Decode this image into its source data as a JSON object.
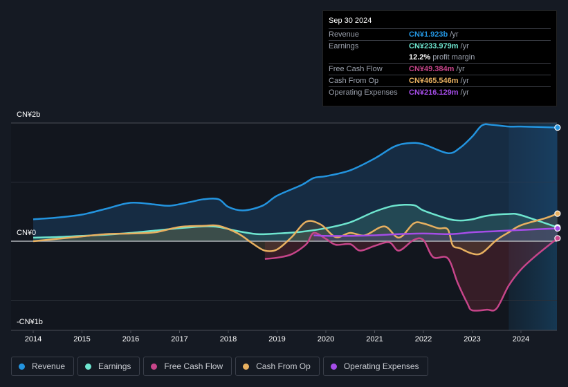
{
  "tooltip": {
    "date": "Sep 30 2024",
    "rows": [
      {
        "label": "Revenue",
        "value": "CN¥1.923b",
        "unit": "/yr",
        "color": "#2394df"
      },
      {
        "label": "Earnings",
        "value": "CN¥233.979m",
        "unit": "/yr",
        "color": "#6ee5cf"
      },
      {
        "label": "",
        "value": "12.2%",
        "unit": "profit margin",
        "color": "#ffffff"
      },
      {
        "label": "Free Cash Flow",
        "value": "CN¥49.384m",
        "unit": "/yr",
        "color": "#c7458a"
      },
      {
        "label": "Cash From Op",
        "value": "CN¥465.546m",
        "unit": "/yr",
        "color": "#e8b060"
      },
      {
        "label": "Operating Expenses",
        "value": "CN¥216.129m",
        "unit": "/yr",
        "color": "#a54de8"
      }
    ]
  },
  "legend": [
    {
      "label": "Revenue",
      "color": "#2394df"
    },
    {
      "label": "Earnings",
      "color": "#6ee5cf"
    },
    {
      "label": "Free Cash Flow",
      "color": "#c7458a"
    },
    {
      "label": "Cash From Op",
      "color": "#e8b060"
    },
    {
      "label": "Operating Expenses",
      "color": "#a54de8"
    }
  ],
  "chart_data": {
    "type": "area",
    "title": "",
    "xlabel": "",
    "ylabel": "",
    "ylim": [
      -1.35,
      2.0
    ],
    "yticks": [
      {
        "value": 2,
        "label": "CN¥2b"
      },
      {
        "value": 0,
        "label": "CN¥0"
      },
      {
        "value": -1,
        "label": "-CN¥1b"
      }
    ],
    "xticks": [
      "2014",
      "2015",
      "2016",
      "2017",
      "2018",
      "2019",
      "2020",
      "2021",
      "2022",
      "2023",
      "2024"
    ],
    "xlim": [
      2013.6,
      2024.75
    ],
    "forecast_shade_from": 2023.75,
    "grid": true,
    "legend_position": "bottom",
    "series": [
      {
        "name": "Revenue",
        "color": "#2394df",
        "x": [
          2014,
          2014.5,
          2015,
          2015.5,
          2016,
          2016.5,
          2016.8,
          2017.2,
          2017.5,
          2017.8,
          2018,
          2018.3,
          2018.7,
          2019,
          2019.5,
          2019.75,
          2020,
          2020.5,
          2021,
          2021.4,
          2021.7,
          2022,
          2022.5,
          2022.75,
          2023,
          2023.2,
          2023.4,
          2023.75,
          2024,
          2024.75
        ],
        "values": [
          0.37,
          0.4,
          0.45,
          0.55,
          0.65,
          0.62,
          0.6,
          0.66,
          0.71,
          0.71,
          0.58,
          0.52,
          0.6,
          0.77,
          0.95,
          1.07,
          1.1,
          1.2,
          1.4,
          1.6,
          1.66,
          1.64,
          1.49,
          1.58,
          1.77,
          1.96,
          1.97,
          1.94,
          1.94,
          1.923
        ]
      },
      {
        "name": "Earnings",
        "color": "#6ee5cf",
        "x": [
          2014,
          2014.5,
          2015,
          2015.5,
          2016,
          2016.5,
          2017,
          2017.5,
          2017.8,
          2018.2,
          2018.6,
          2019,
          2019.5,
          2020,
          2020.5,
          2021,
          2021.4,
          2021.8,
          2022,
          2022.5,
          2022.75,
          2023,
          2023.3,
          2023.75,
          2024,
          2024.75
        ],
        "values": [
          0.06,
          0.07,
          0.09,
          0.11,
          0.14,
          0.18,
          0.22,
          0.25,
          0.24,
          0.17,
          0.12,
          0.13,
          0.16,
          0.22,
          0.32,
          0.5,
          0.6,
          0.61,
          0.52,
          0.38,
          0.35,
          0.37,
          0.43,
          0.46,
          0.44,
          0.234
        ]
      },
      {
        "name": "Free Cash Flow",
        "color": "#c7458a",
        "x": [
          2018.75,
          2019,
          2019.3,
          2019.6,
          2019.75,
          2020,
          2020.2,
          2020.5,
          2020.7,
          2021,
          2021.3,
          2021.5,
          2021.8,
          2022,
          2022.2,
          2022.5,
          2022.7,
          2022.9,
          2023,
          2023.3,
          2023.5,
          2023.75,
          2024,
          2024.3,
          2024.75
        ],
        "values": [
          -0.3,
          -0.28,
          -0.22,
          -0.05,
          0.14,
          0.04,
          -0.06,
          -0.05,
          -0.16,
          -0.08,
          -0.02,
          -0.16,
          0.02,
          0.02,
          -0.27,
          -0.29,
          -0.7,
          -1.05,
          -1.17,
          -1.16,
          -1.14,
          -0.75,
          -0.48,
          -0.25,
          0.049
        ]
      },
      {
        "name": "Cash From Op",
        "color": "#e8b060",
        "x": [
          2014,
          2014.5,
          2015,
          2015.5,
          2016,
          2016.5,
          2017,
          2017.5,
          2017.8,
          2018.2,
          2018.5,
          2018.75,
          2019,
          2019.3,
          2019.6,
          2019.9,
          2020.2,
          2020.5,
          2020.8,
          2021.2,
          2021.5,
          2021.8,
          2022,
          2022.3,
          2022.5,
          2022.6,
          2022.75,
          2023,
          2023.2,
          2023.5,
          2023.75,
          2024,
          2024.5,
          2024.75
        ],
        "values": [
          0.0,
          0.04,
          0.08,
          0.12,
          0.13,
          0.15,
          0.24,
          0.26,
          0.26,
          0.13,
          -0.04,
          -0.16,
          -0.14,
          0.07,
          0.33,
          0.28,
          0.07,
          0.14,
          0.1,
          0.25,
          0.06,
          0.3,
          0.3,
          0.22,
          0.2,
          -0.07,
          -0.12,
          -0.21,
          -0.2,
          0.02,
          0.15,
          0.27,
          0.39,
          0.466
        ]
      },
      {
        "name": "Operating Expenses",
        "color": "#a54de8",
        "x": [
          2019.75,
          2020,
          2020.5,
          2021,
          2021.5,
          2022,
          2022.5,
          2022.75,
          2023,
          2023.5,
          2024,
          2024.75
        ],
        "values": [
          0.1,
          0.09,
          0.09,
          0.1,
          0.12,
          0.13,
          0.12,
          0.13,
          0.15,
          0.17,
          0.19,
          0.216
        ]
      }
    ]
  }
}
